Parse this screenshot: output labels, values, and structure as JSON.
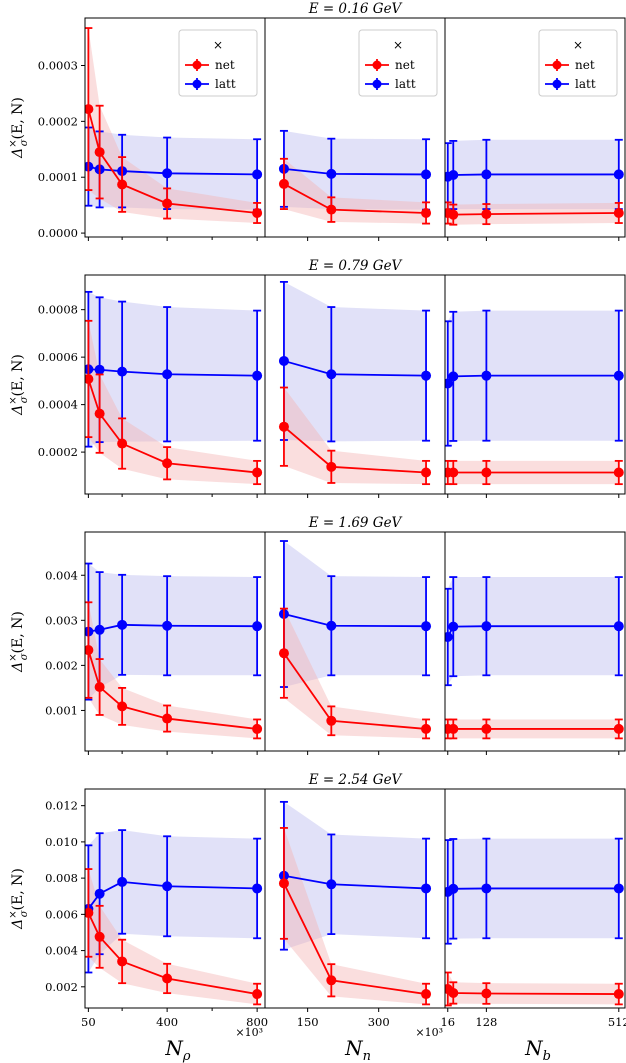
{
  "colors": {
    "net": "#ff0000",
    "latt": "#0000ff",
    "net_band": "#f4b6b6",
    "latt_band": "#c9c9f2",
    "frame": "#000000"
  },
  "labels": {
    "ylabel": "Δ",
    "ylabel_sup": "×",
    "ylabel_sub": "σ",
    "ylabel_rest": "(E, N)",
    "xlabel_rho": "N",
    "xlabel_rho_sub": "ρ",
    "xlabel_n": "N",
    "xlabel_n_sub": "n",
    "xlabel_b": "N",
    "xlabel_b_sub": "b",
    "x_multiplier": "×10³"
  },
  "legend": {
    "title": "×",
    "entries": [
      "net",
      "latt"
    ]
  },
  "chart_data": [
    {
      "type": "line",
      "title": "E = 0.16 GeV",
      "yticks": [
        "0.0000",
        "0.0001",
        "0.0002",
        "0.0003"
      ],
      "ylim": [
        -7e-06,
        0.000385
      ],
      "panels": [
        {
          "x": [
            50,
            100,
            200,
            400,
            800
          ],
          "series": [
            {
              "name": "net",
              "values": [
                0.000222,
                0.000145,
                8.7e-05,
                5.3e-05,
                3.6e-05
              ],
              "errors": [
                0.000145,
                8.3e-05,
                4.9e-05,
                2.7e-05,
                1.8e-05
              ]
            },
            {
              "name": "latt",
              "values": [
                0.000119,
                0.000114,
                0.000111,
                0.000107,
                0.000105
              ],
              "errors": [
                7e-05,
                6.8e-05,
                6.5e-05,
                6.4e-05,
                6.3e-05
              ]
            }
          ]
        },
        {
          "x": [
            100,
            200,
            400
          ],
          "series": [
            {
              "name": "net",
              "values": [
                8.8e-05,
                4.2e-05,
                3.6e-05
              ],
              "errors": [
                4.5e-05,
                2.2e-05,
                1.9e-05
              ]
            },
            {
              "name": "latt",
              "values": [
                0.000115,
                0.000106,
                0.000105
              ],
              "errors": [
                6.8e-05,
                6.3e-05,
                6.3e-05
              ]
            }
          ]
        },
        {
          "x": [
            16,
            32,
            128,
            512
          ],
          "series": [
            {
              "name": "net",
              "values": [
                3.6e-05,
                3.3e-05,
                3.4e-05,
                3.6e-05
              ],
              "errors": [
                1.9e-05,
                1.8e-05,
                1.8e-05,
                1.8e-05
              ]
            },
            {
              "name": "latt",
              "values": [
                0.000101,
                0.000104,
                0.000105,
                0.000105
              ],
              "errors": [
                6e-05,
                6.1e-05,
                6.2e-05,
                6.2e-05
              ]
            }
          ]
        }
      ]
    },
    {
      "type": "line",
      "title": "E = 0.79 GeV",
      "yticks": [
        "0.0002",
        "0.0004",
        "0.0006",
        "0.0008"
      ],
      "ylim": [
        2.35e-05,
        0.000946
      ],
      "panels": [
        {
          "x": [
            50,
            100,
            200,
            400,
            800
          ],
          "series": [
            {
              "name": "net",
              "values": [
                0.000508,
                0.000362,
                0.000236,
                0.000153,
                0.000114
              ],
              "errors": [
                0.000245,
                0.000165,
                0.000106,
                6.8e-05,
                4.9e-05
              ]
            },
            {
              "name": "latt",
              "values": [
                0.000549,
                0.000547,
                0.000539,
                0.000528,
                0.000522
              ],
              "errors": [
                0.000326,
                0.000305,
                0.000295,
                0.000283,
                0.000274
              ]
            }
          ]
        },
        {
          "x": [
            100,
            200,
            400
          ],
          "series": [
            {
              "name": "net",
              "values": [
                0.000307,
                0.000138,
                0.000114
              ],
              "errors": [
                0.000165,
                6.8e-05,
                4.9e-05
              ]
            },
            {
              "name": "latt",
              "values": [
                0.000584,
                0.000528,
                0.000522
              ],
              "errors": [
                0.000333,
                0.000283,
                0.000274
              ]
            }
          ]
        },
        {
          "x": [
            16,
            32,
            128,
            512
          ],
          "series": [
            {
              "name": "net",
              "values": [
                0.000114,
                0.000114,
                0.000114,
                0.000114
              ],
              "errors": [
                4.9e-05,
                4.9e-05,
                4.9e-05,
                4.9e-05
              ]
            },
            {
              "name": "latt",
              "values": [
                0.000489,
                0.000519,
                0.000522,
                0.000522
              ],
              "errors": [
                0.000262,
                0.000272,
                0.000274,
                0.000274
              ]
            }
          ]
        }
      ]
    },
    {
      "type": "line",
      "title": "E = 1.69 GeV",
      "yticks": [
        "0.001",
        "0.002",
        "0.003",
        "0.004"
      ],
      "ylim": [
        0.0001,
        0.00496
      ],
      "panels": [
        {
          "x": [
            50,
            100,
            200,
            400,
            800
          ],
          "series": [
            {
              "name": "net",
              "values": [
                0.00234,
                0.00152,
                0.00109,
                0.00082,
                0.00059
              ],
              "errors": [
                0.00106,
                0.00062,
                0.00041,
                0.00029,
                0.00021
              ]
            },
            {
              "name": "latt",
              "values": [
                0.00275,
                0.00279,
                0.0029,
                0.00288,
                0.00287
              ],
              "errors": [
                0.00151,
                0.00128,
                0.00111,
                0.0011,
                0.00109
              ]
            }
          ]
        },
        {
          "x": [
            100,
            200,
            400
          ],
          "series": [
            {
              "name": "net",
              "values": [
                0.00227,
                0.00077,
                0.00059
              ],
              "errors": [
                0.00099,
                0.00032,
                0.00021
              ]
            },
            {
              "name": "latt",
              "values": [
                0.00314,
                0.00288,
                0.00287
              ],
              "errors": [
                0.00162,
                0.0011,
                0.00109
              ]
            }
          ]
        },
        {
          "x": [
            16,
            32,
            128,
            512
          ],
          "series": [
            {
              "name": "net",
              "values": [
                0.00059,
                0.00059,
                0.00059,
                0.00059
              ],
              "errors": [
                0.00021,
                0.00021,
                0.00021,
                0.00021
              ]
            },
            {
              "name": "latt",
              "values": [
                0.00263,
                0.00286,
                0.00287,
                0.00287
              ],
              "errors": [
                0.00107,
                0.0011,
                0.00109,
                0.00109
              ]
            }
          ]
        }
      ]
    },
    {
      "type": "line",
      "title": "E = 2.54 GeV",
      "yticks": [
        "0.002",
        "0.004",
        "0.006",
        "0.008",
        "0.010",
        "0.012"
      ],
      "ylim": [
        0.00083,
        0.01292
      ],
      "panels": [
        {
          "x": [
            50,
            100,
            200,
            400,
            800
          ],
          "series": [
            {
              "name": "net",
              "values": [
                0.00608,
                0.00476,
                0.0034,
                0.00246,
                0.0016
              ],
              "errors": [
                0.00242,
                0.00171,
                0.0012,
                0.00081,
                0.00057
              ]
            },
            {
              "name": "latt",
              "values": [
                0.0063,
                0.00714,
                0.00779,
                0.00755,
                0.00743
              ],
              "errors": [
                0.00351,
                0.00334,
                0.00286,
                0.00276,
                0.00275
              ]
            }
          ]
        },
        {
          "x": [
            100,
            200,
            400
          ],
          "series": [
            {
              "name": "net",
              "values": [
                0.00771,
                0.00236,
                0.0016
              ],
              "errors": [
                0.00306,
                0.00089,
                0.00057
              ]
            },
            {
              "name": "latt",
              "values": [
                0.00813,
                0.00766,
                0.00743
              ],
              "errors": [
                0.00408,
                0.00275,
                0.00275
              ]
            }
          ]
        },
        {
          "x": [
            16,
            32,
            128,
            512
          ],
          "series": [
            {
              "name": "net",
              "values": [
                0.00188,
                0.00166,
                0.00163,
                0.0016
              ],
              "errors": [
                0.00091,
                0.00059,
                0.00057,
                0.00057
              ]
            },
            {
              "name": "latt",
              "values": [
                0.00724,
                0.00741,
                0.00743,
                0.00743
              ],
              "errors": [
                0.00286,
                0.00275,
                0.00275,
                0.00275
              ]
            }
          ]
        }
      ]
    }
  ],
  "xticks": {
    "rho": {
      "labels": [
        "50",
        "400",
        "800"
      ],
      "values": [
        50,
        400,
        800
      ],
      "minor": [
        200,
        600
      ],
      "xlim": [
        35,
        835
      ]
    },
    "n": {
      "labels": [
        "150",
        "300"
      ],
      "values": [
        150,
        300
      ],
      "minor": [],
      "xlim": [
        60,
        440
      ]
    },
    "b": {
      "labels": [
        "16",
        "128",
        "512"
      ],
      "values": [
        16,
        128,
        512
      ],
      "minor": [],
      "xlim": [
        8,
        530
      ]
    }
  }
}
